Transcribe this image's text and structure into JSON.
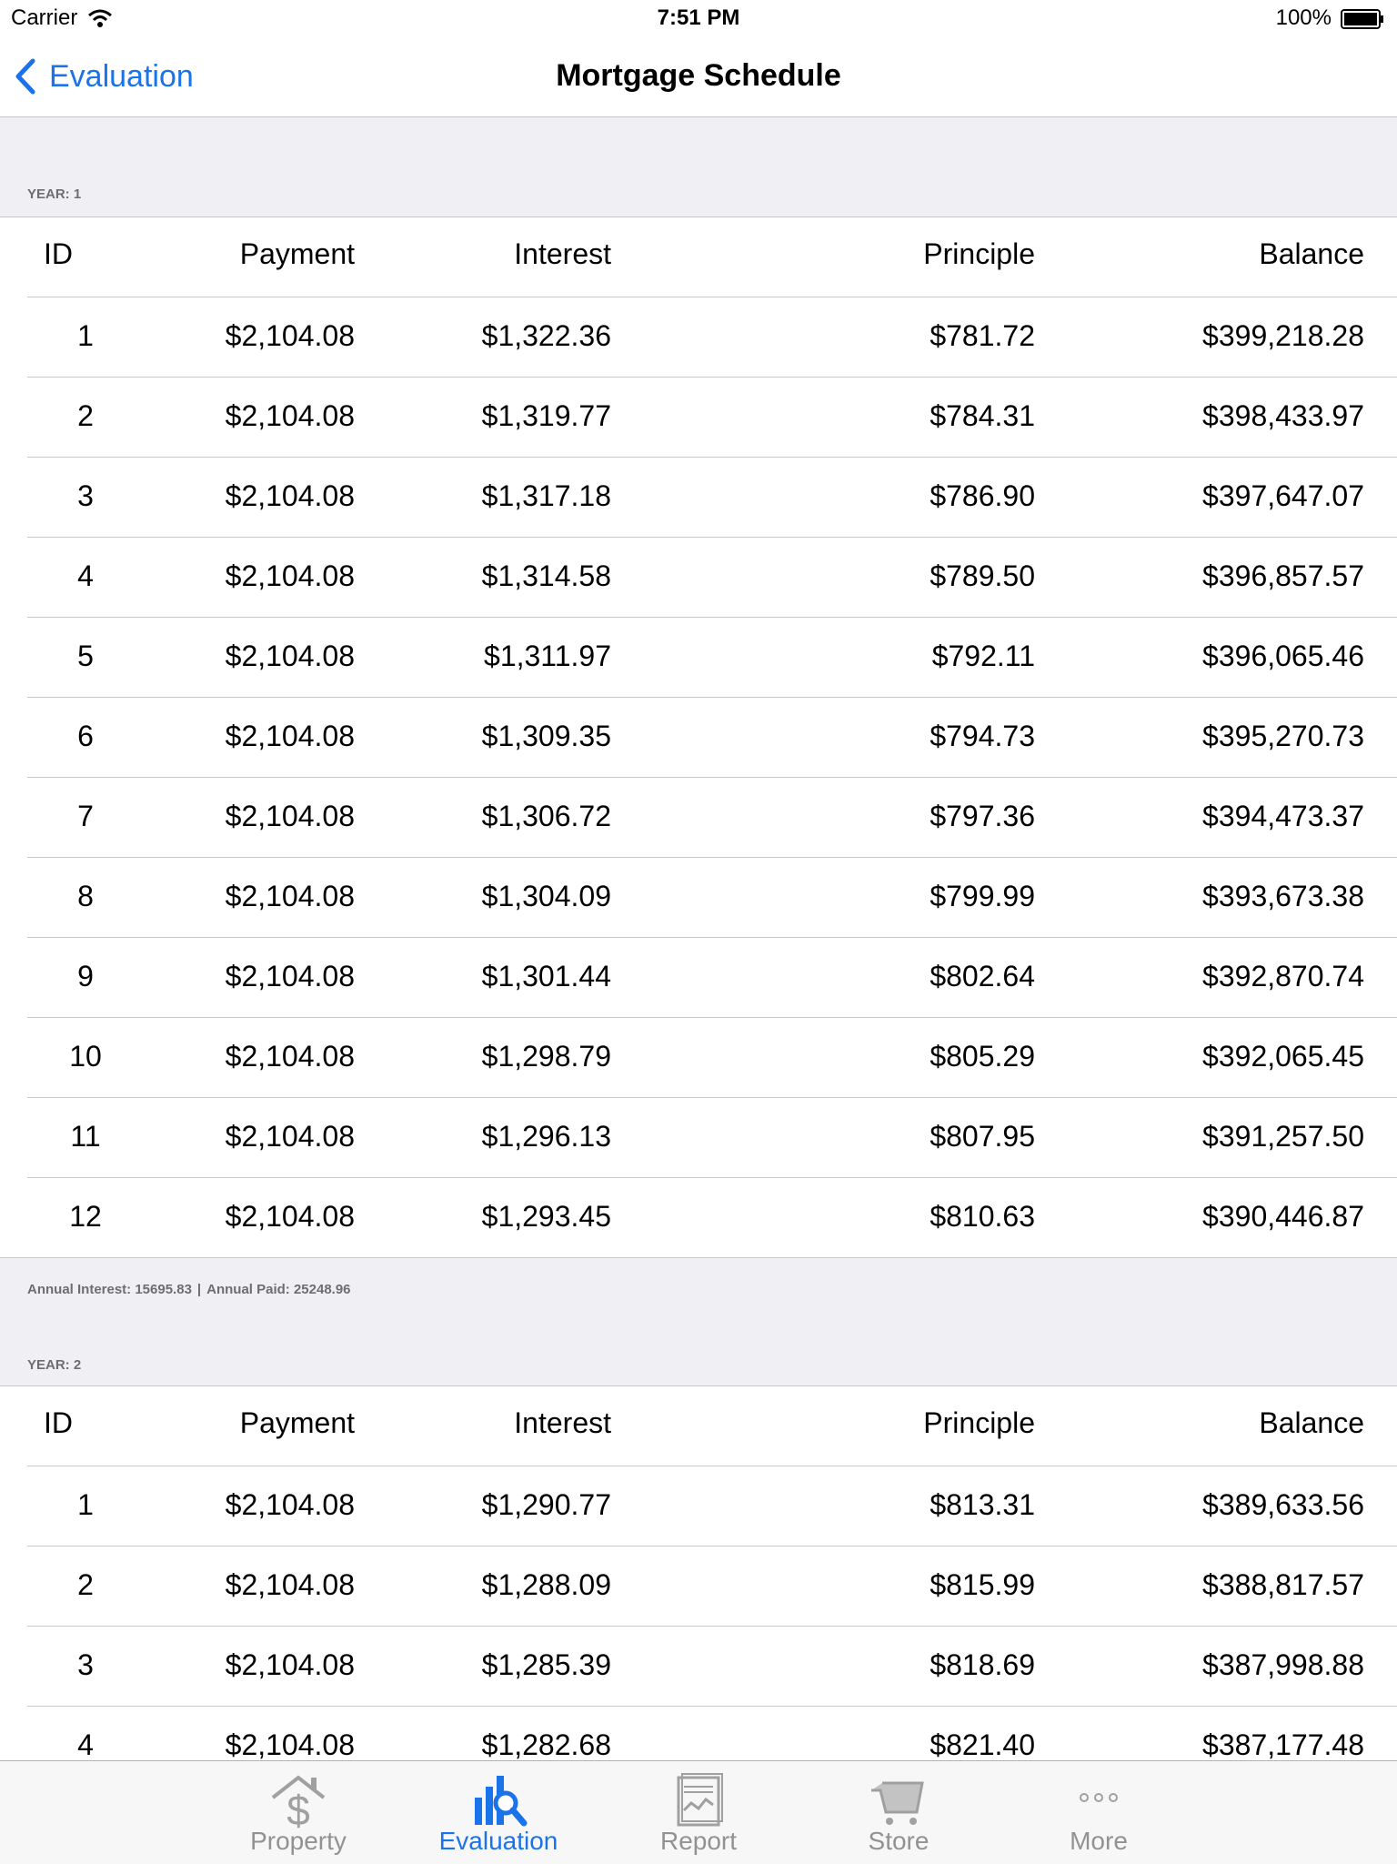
{
  "status": {
    "carrier": "Carrier",
    "time": "7:51 PM",
    "battery": "100%"
  },
  "nav": {
    "back_label": "Evaluation",
    "title": "Mortgage Schedule"
  },
  "columns": [
    "ID",
    "Payment",
    "Interest",
    "Principle",
    "Balance"
  ],
  "years": [
    {
      "label": "YEAR: 1",
      "rows": [
        [
          "1",
          "$2,104.08",
          "$1,322.36",
          "$781.72",
          "$399,218.28"
        ],
        [
          "2",
          "$2,104.08",
          "$1,319.77",
          "$784.31",
          "$398,433.97"
        ],
        [
          "3",
          "$2,104.08",
          "$1,317.18",
          "$786.90",
          "$397,647.07"
        ],
        [
          "4",
          "$2,104.08",
          "$1,314.58",
          "$789.50",
          "$396,857.57"
        ],
        [
          "5",
          "$2,104.08",
          "$1,311.97",
          "$792.11",
          "$396,065.46"
        ],
        [
          "6",
          "$2,104.08",
          "$1,309.35",
          "$794.73",
          "$395,270.73"
        ],
        [
          "7",
          "$2,104.08",
          "$1,306.72",
          "$797.36",
          "$394,473.37"
        ],
        [
          "8",
          "$2,104.08",
          "$1,304.09",
          "$799.99",
          "$393,673.38"
        ],
        [
          "9",
          "$2,104.08",
          "$1,301.44",
          "$802.64",
          "$392,870.74"
        ],
        [
          "10",
          "$2,104.08",
          "$1,298.79",
          "$805.29",
          "$392,065.45"
        ],
        [
          "11",
          "$2,104.08",
          "$1,296.13",
          "$807.95",
          "$391,257.50"
        ],
        [
          "12",
          "$2,104.08",
          "$1,293.45",
          "$810.63",
          "$390,446.87"
        ]
      ],
      "footer_interest": "Annual Interest: 15695.83",
      "footer_sep": "|",
      "footer_paid": "Annual Paid: 25248.96"
    },
    {
      "label": "YEAR: 2",
      "rows": [
        [
          "1",
          "$2,104.08",
          "$1,290.77",
          "$813.31",
          "$389,633.56"
        ],
        [
          "2",
          "$2,104.08",
          "$1,288.09",
          "$815.99",
          "$388,817.57"
        ],
        [
          "3",
          "$2,104.08",
          "$1,285.39",
          "$818.69",
          "$387,998.88"
        ],
        [
          "4",
          "$2,104.08",
          "$1,282.68",
          "$821.40",
          "$387,177.48"
        ]
      ]
    }
  ],
  "tabs": [
    {
      "label": "Property",
      "icon": "property-icon",
      "active": false
    },
    {
      "label": "Evaluation",
      "icon": "evaluation-icon",
      "active": true
    },
    {
      "label": "Report",
      "icon": "report-icon",
      "active": false
    },
    {
      "label": "Store",
      "icon": "store-cart-icon",
      "active": false
    },
    {
      "label": "More",
      "icon": "more-icon",
      "active": false
    }
  ],
  "colors": {
    "accent": "#1a73e8",
    "inactive": "#929292",
    "grouped_bg": "#efeff4"
  }
}
